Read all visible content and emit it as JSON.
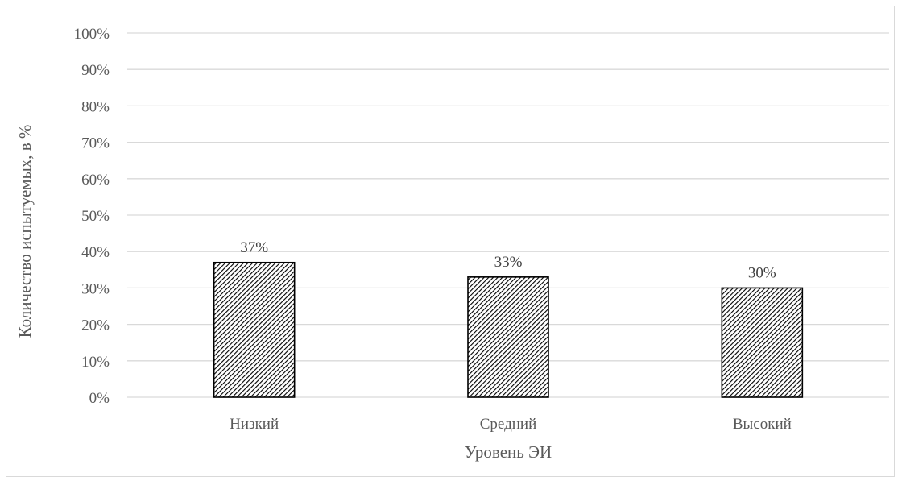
{
  "chart_data": {
    "type": "bar",
    "title": "",
    "xlabel": "Уровень ЭИ",
    "ylabel": "Количество испытуемых, в %",
    "categories": [
      "Низкий",
      "Средний",
      "Высокий"
    ],
    "values": [
      37,
      33,
      30
    ],
    "data_labels": [
      "37%",
      "33%",
      "30%"
    ],
    "ylim": [
      0,
      100
    ],
    "yticks": [
      0,
      10,
      20,
      30,
      40,
      50,
      60,
      70,
      80,
      90,
      100
    ],
    "ytick_labels": [
      "0%",
      "10%",
      "20%",
      "30%",
      "40%",
      "50%",
      "60%",
      "70%",
      "80%",
      "90%",
      "100%"
    ],
    "grid": true,
    "legend": "none",
    "bar_fill": "diagonal-hatch",
    "colors": {
      "bar_stroke": "#000000",
      "hatch": "#000000",
      "grid": "#d9d9d9",
      "tick_text": "#595959",
      "label_text": "#404040"
    }
  }
}
